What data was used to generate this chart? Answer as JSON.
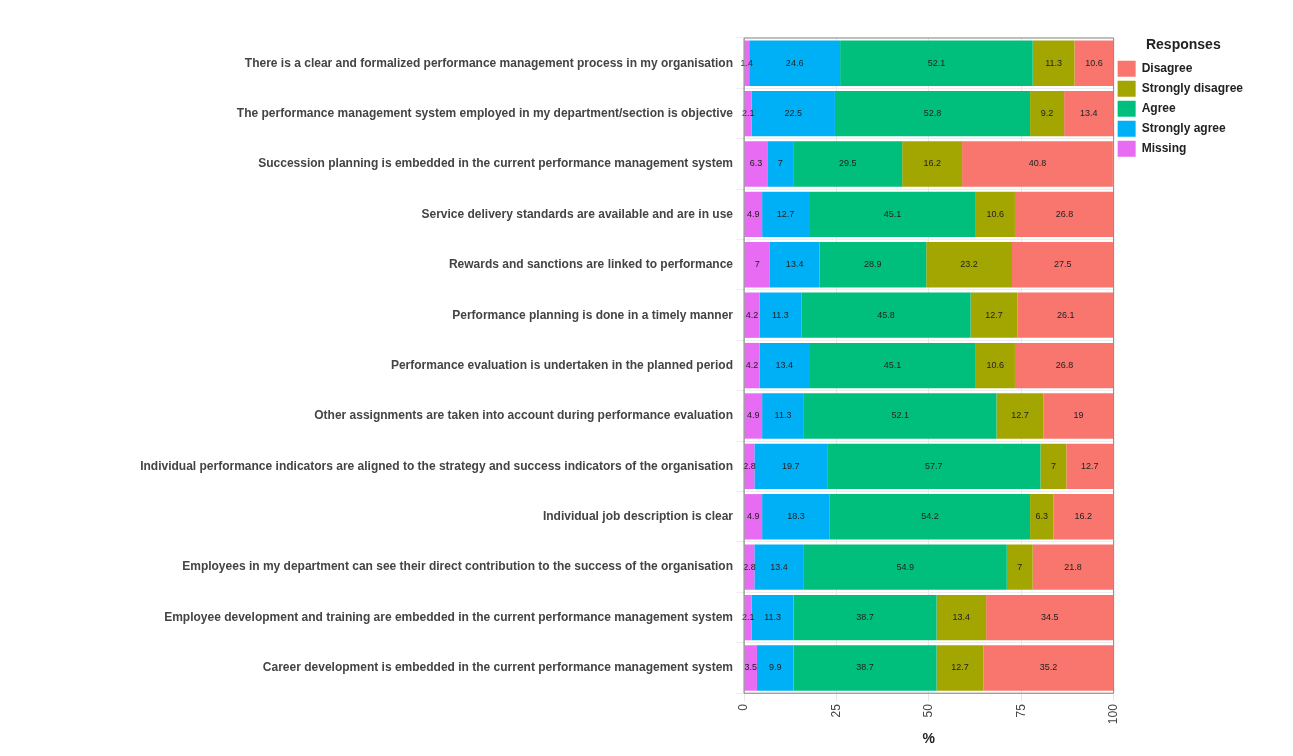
{
  "chart_data": {
    "type": "bar",
    "orientation": "horizontal",
    "stacked": true,
    "xlabel": "%",
    "legend_title": "Responses",
    "legend": "right",
    "grid": true,
    "data_labels": true,
    "categories": [
      "There is a clear and formalized performance management process in my organisation",
      "The performance management system employed in my department/section is objective",
      "Succession planning is embedded in the current performance management system",
      "Service delivery standards are available and are in use",
      "Rewards and sanctions are linked to performance",
      "Performance planning is done in a timely manner",
      "Performance evaluation is undertaken in the planned period",
      "Other assignments are taken into account during performance evaluation",
      "Individual performance indicators are aligned to the strategy and success indicators of the organisation",
      "Individual job description is clear",
      "Employees in my department can see their direct contribution to the success of the organisation",
      "Employee development and training are embedded in the current performance management system",
      "Career development is embedded in the current performance management system"
    ],
    "xlim": [
      0,
      100
    ],
    "xticks": [
      0,
      25,
      50,
      75,
      100
    ],
    "series": [
      {
        "name": "Missing",
        "color": "#e76bf3",
        "values": [
          1.4,
          2.1,
          6.3,
          4.9,
          7,
          4.2,
          4.2,
          4.9,
          2.8,
          4.9,
          2.8,
          2.1,
          3.5
        ]
      },
      {
        "name": "Strongly agree",
        "color": "#00b0f6",
        "values": [
          24.6,
          22.5,
          7,
          12.7,
          13.4,
          11.3,
          13.4,
          11.3,
          19.7,
          18.3,
          13.4,
          11.3,
          9.9
        ]
      },
      {
        "name": "Agree",
        "color": "#00bf7d",
        "values": [
          52.1,
          52.8,
          29.5,
          45.1,
          28.9,
          45.8,
          45.1,
          52.1,
          57.7,
          54.2,
          54.9,
          38.7,
          38.7
        ]
      },
      {
        "name": "Strongly disagree",
        "color": "#a3a500",
        "values": [
          11.3,
          9.2,
          16.2,
          10.6,
          23.2,
          12.7,
          10.6,
          12.7,
          7,
          6.3,
          7,
          13.4,
          12.7
        ]
      },
      {
        "name": "Disagree",
        "color": "#f8766d",
        "values": [
          10.6,
          13.4,
          40.8,
          26.8,
          27.5,
          26.1,
          26.8,
          19,
          12.7,
          16.2,
          21.8,
          34.5,
          35.2
        ]
      }
    ]
  }
}
